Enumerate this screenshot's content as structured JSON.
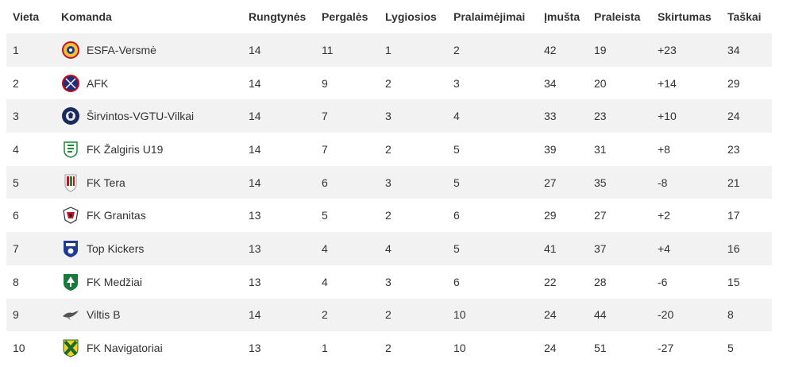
{
  "table": {
    "headers": [
      "Vieta",
      "Komanda",
      "Rungtynės",
      "Pergalės",
      "Lygiosios",
      "Pralaimėjimai",
      "Įmušta",
      "Praleista",
      "Skirtumas",
      "Taškai"
    ],
    "rows": [
      {
        "pos": "1",
        "team": "ESFA-Versmė",
        "logo": "esfa-logo",
        "played": "14",
        "won": "11",
        "draw": "1",
        "lost": "2",
        "scored": "42",
        "conceded": "19",
        "diff": "+23",
        "points": "34"
      },
      {
        "pos": "2",
        "team": "AFK",
        "logo": "afk-logo",
        "played": "14",
        "won": "9",
        "draw": "2",
        "lost": "3",
        "scored": "34",
        "conceded": "20",
        "diff": "+14",
        "points": "29"
      },
      {
        "pos": "3",
        "team": "Širvintos-VGTU-Vilkai",
        "logo": "vilkai-logo",
        "played": "14",
        "won": "7",
        "draw": "3",
        "lost": "4",
        "scored": "33",
        "conceded": "23",
        "diff": "+10",
        "points": "24"
      },
      {
        "pos": "4",
        "team": "FK Žalgiris U19",
        "logo": "zalgiris-logo",
        "played": "14",
        "won": "7",
        "draw": "2",
        "lost": "5",
        "scored": "39",
        "conceded": "31",
        "diff": "+8",
        "points": "23"
      },
      {
        "pos": "5",
        "team": "FK Tera",
        "logo": "tera-logo",
        "played": "14",
        "won": "6",
        "draw": "3",
        "lost": "5",
        "scored": "27",
        "conceded": "35",
        "diff": "-8",
        "points": "21"
      },
      {
        "pos": "6",
        "team": "FK Granitas",
        "logo": "granitas-logo",
        "played": "13",
        "won": "5",
        "draw": "2",
        "lost": "6",
        "scored": "29",
        "conceded": "27",
        "diff": "+2",
        "points": "17"
      },
      {
        "pos": "7",
        "team": "Top Kickers",
        "logo": "top-kickers-logo",
        "played": "13",
        "won": "4",
        "draw": "4",
        "lost": "5",
        "scored": "41",
        "conceded": "37",
        "diff": "+4",
        "points": "16"
      },
      {
        "pos": "8",
        "team": "FK Medžiai",
        "logo": "medziai-logo",
        "played": "13",
        "won": "4",
        "draw": "3",
        "lost": "6",
        "scored": "22",
        "conceded": "28",
        "diff": "-6",
        "points": "15"
      },
      {
        "pos": "9",
        "team": "Viltis B",
        "logo": "viltis-logo",
        "played": "14",
        "won": "2",
        "draw": "2",
        "lost": "10",
        "scored": "24",
        "conceded": "44",
        "diff": "-20",
        "points": "8"
      },
      {
        "pos": "10",
        "team": "FK Navigatoriai",
        "logo": "navigatoriai-logo",
        "played": "13",
        "won": "1",
        "draw": "2",
        "lost": "10",
        "scored": "24",
        "conceded": "51",
        "diff": "-27",
        "points": "5"
      }
    ]
  },
  "colors": {
    "row_stripe": "#f2f2f2",
    "text": "#333333"
  }
}
